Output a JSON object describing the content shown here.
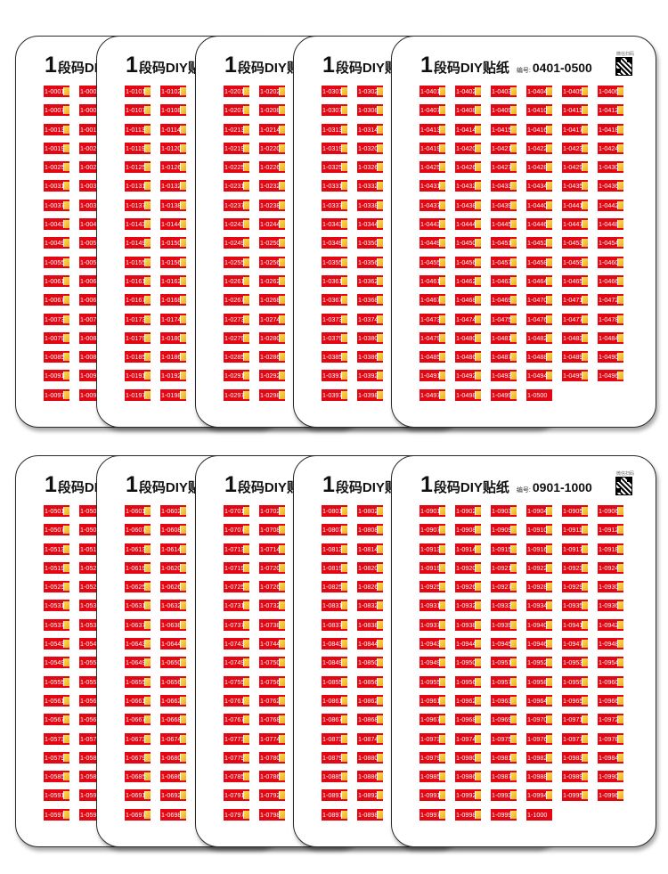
{
  "colors": {
    "sticker_red": "#e30613",
    "card_border": "#2a2a2a",
    "text": "#111111"
  },
  "groups": [
    {
      "cards": [
        {
          "one": "1",
          "name": "段码DI",
          "number_label": "",
          "range": "",
          "full": false,
          "start": 1
        },
        {
          "one": "1",
          "name": "段码DIY贴",
          "number_label": "",
          "range": "",
          "full": false,
          "start": 101
        },
        {
          "one": "1",
          "name": "段码DIY贴",
          "number_label": "",
          "range": "",
          "full": false,
          "start": 201
        },
        {
          "one": "1",
          "name": "段码DIY贴",
          "number_label": "",
          "range": "",
          "full": false,
          "start": 301
        },
        {
          "one": "1",
          "name": "段码DIY贴纸",
          "number_label": "编号:",
          "range": "0401-0500",
          "full": true,
          "start": 401,
          "qr_caption": "微信扫码"
        }
      ]
    },
    {
      "cards": [
        {
          "one": "1",
          "name": "段码DI",
          "number_label": "",
          "range": "",
          "full": false,
          "start": 501
        },
        {
          "one": "1",
          "name": "段码DIY贴",
          "number_label": "",
          "range": "",
          "full": false,
          "start": 601
        },
        {
          "one": "1",
          "name": "段码DIY贴",
          "number_label": "",
          "range": "",
          "full": false,
          "start": 701
        },
        {
          "one": "1",
          "name": "段码DIY贴",
          "number_label": "",
          "range": "",
          "full": false,
          "start": 801
        },
        {
          "one": "1",
          "name": "段码DIY贴纸",
          "number_label": "编号:",
          "range": "0901-1000",
          "full": true,
          "start": 901,
          "qr_caption": "微信扫码"
        }
      ]
    }
  ]
}
